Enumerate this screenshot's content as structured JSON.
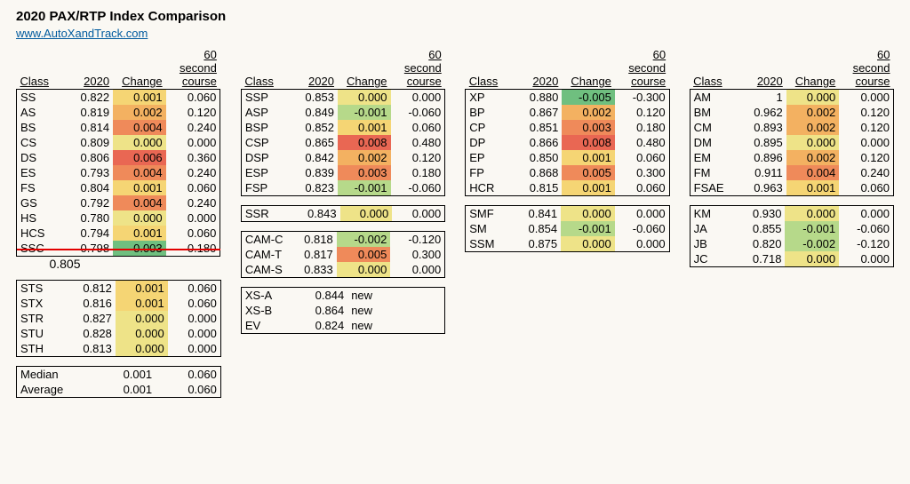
{
  "title": "2020 PAX/RTP Index Comparison",
  "site_url": "www.AutoXandTrack.com",
  "headers": {
    "class": "Class",
    "pax": "2020",
    "change": "Change",
    "course": "60 second\ncourse"
  },
  "colors": {
    "scale": {
      "neg2": "#6fbf7f",
      "neg1": "#b6d98a",
      "zero": "#eee388",
      "pos1": "#f5d574",
      "pos2": "#f3b161",
      "pos3": "#ef8a5a",
      "pos4": "#e96753"
    }
  },
  "summary_below": "0.805",
  "stats": {
    "median_label": "Median",
    "median_change": "0.001",
    "median_course": "0.060",
    "avg_label": "Average",
    "avg_change": "0.001",
    "avg_course": "0.060"
  },
  "col1": {
    "street": [
      [
        "SS",
        "0.822",
        "0.001",
        "0.060",
        "pos1"
      ],
      [
        "AS",
        "0.819",
        "0.002",
        "0.120",
        "pos2"
      ],
      [
        "BS",
        "0.814",
        "0.004",
        "0.240",
        "pos3"
      ],
      [
        "CS",
        "0.809",
        "0.000",
        "0.000",
        "zero"
      ],
      [
        "DS",
        "0.806",
        "0.006",
        "0.360",
        "pos4"
      ],
      [
        "ES",
        "0.793",
        "0.004",
        "0.240",
        "pos3"
      ],
      [
        "FS",
        "0.804",
        "0.001",
        "0.060",
        "pos1"
      ],
      [
        "GS",
        "0.792",
        "0.004",
        "0.240",
        "pos3"
      ],
      [
        "HS",
        "0.780",
        "0.000",
        "0.000",
        "zero"
      ],
      [
        "HCS",
        "0.794",
        "0.001",
        "0.060",
        "pos1"
      ],
      [
        "SSC",
        "0.798",
        "0.003",
        "0.180",
        "neg2",
        "strike"
      ]
    ],
    "touring": [
      [
        "STS",
        "0.812",
        "0.001",
        "0.060",
        "pos1"
      ],
      [
        "STX",
        "0.816",
        "0.001",
        "0.060",
        "pos1"
      ],
      [
        "STR",
        "0.827",
        "0.000",
        "0.000",
        "zero"
      ],
      [
        "STU",
        "0.828",
        "0.000",
        "0.000",
        "zero"
      ],
      [
        "STH",
        "0.813",
        "0.000",
        "0.000",
        "zero"
      ]
    ]
  },
  "col2": {
    "sp": [
      [
        "SSP",
        "0.853",
        "0.000",
        "0.000",
        "zero"
      ],
      [
        "ASP",
        "0.849",
        "-0.001",
        "-0.060",
        "neg1"
      ],
      [
        "BSP",
        "0.852",
        "0.001",
        "0.060",
        "pos1"
      ],
      [
        "CSP",
        "0.865",
        "0.008",
        "0.480",
        "pos4"
      ],
      [
        "DSP",
        "0.842",
        "0.002",
        "0.120",
        "pos2"
      ],
      [
        "ESP",
        "0.839",
        "0.003",
        "0.180",
        "pos3"
      ],
      [
        "FSP",
        "0.823",
        "-0.001",
        "-0.060",
        "neg1"
      ]
    ],
    "ssr": [
      [
        "SSR",
        "0.843",
        "0.000",
        "0.000",
        "zero"
      ]
    ],
    "cam": [
      [
        "CAM-C",
        "0.818",
        "-0.002",
        "-0.120",
        "neg1"
      ],
      [
        "CAM-T",
        "0.817",
        "0.005",
        "0.300",
        "pos3"
      ],
      [
        "CAM-S",
        "0.833",
        "0.000",
        "0.000",
        "zero"
      ]
    ],
    "newc": [
      [
        "XS-A",
        "0.844",
        "new"
      ],
      [
        "XS-B",
        "0.864",
        "new"
      ],
      [
        "EV",
        "0.824",
        "new"
      ]
    ]
  },
  "col3": {
    "prep": [
      [
        "XP",
        "0.880",
        "-0.005",
        "-0.300",
        "neg2"
      ],
      [
        "BP",
        "0.867",
        "0.002",
        "0.120",
        "pos2"
      ],
      [
        "CP",
        "0.851",
        "0.003",
        "0.180",
        "pos3"
      ],
      [
        "DP",
        "0.866",
        "0.008",
        "0.480",
        "pos4"
      ],
      [
        "EP",
        "0.850",
        "0.001",
        "0.060",
        "pos1"
      ],
      [
        "FP",
        "0.868",
        "0.005",
        "0.300",
        "pos3"
      ],
      [
        "HCR",
        "0.815",
        "0.001",
        "0.060",
        "pos1"
      ]
    ],
    "sm": [
      [
        "SMF",
        "0.841",
        "0.000",
        "0.000",
        "zero"
      ],
      [
        "SM",
        "0.854",
        "-0.001",
        "-0.060",
        "neg1"
      ],
      [
        "SSM",
        "0.875",
        "0.000",
        "0.000",
        "zero"
      ]
    ]
  },
  "col4": {
    "mod": [
      [
        "AM",
        "1",
        "0.000",
        "0.000",
        "zero"
      ],
      [
        "BM",
        "0.962",
        "0.002",
        "0.120",
        "pos2"
      ],
      [
        "CM",
        "0.893",
        "0.002",
        "0.120",
        "pos2"
      ],
      [
        "DM",
        "0.895",
        "0.000",
        "0.000",
        "zero"
      ],
      [
        "EM",
        "0.896",
        "0.002",
        "0.120",
        "pos2"
      ],
      [
        "FM",
        "0.911",
        "0.004",
        "0.240",
        "pos3"
      ],
      [
        "FSAE",
        "0.963",
        "0.001",
        "0.060",
        "pos1"
      ]
    ],
    "kart": [
      [
        "KM",
        "0.930",
        "0.000",
        "0.000",
        "zero"
      ],
      [
        "JA",
        "0.855",
        "-0.001",
        "-0.060",
        "neg1"
      ],
      [
        "JB",
        "0.820",
        "-0.002",
        "-0.120",
        "neg1"
      ],
      [
        "JC",
        "0.718",
        "0.000",
        "0.000",
        "zero"
      ]
    ]
  }
}
